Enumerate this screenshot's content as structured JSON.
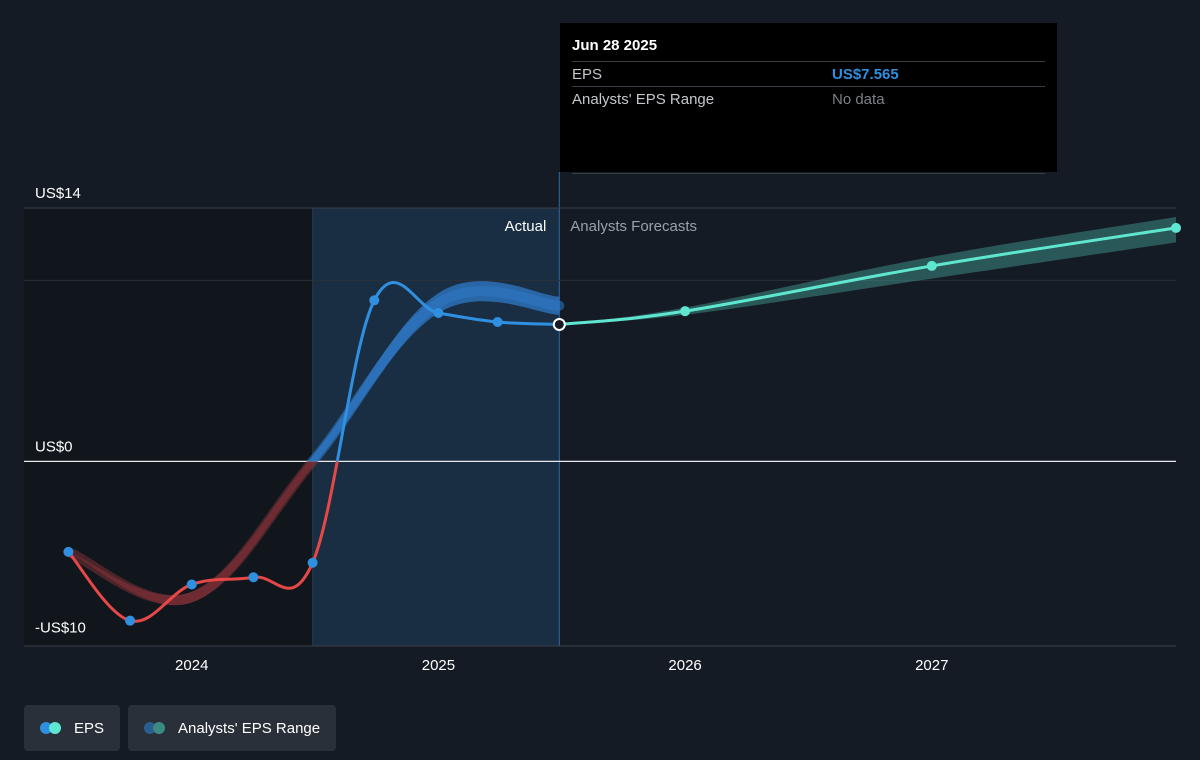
{
  "chart_data": {
    "type": "line",
    "y_tick_labels": [
      {
        "label": "US$14",
        "value": 14
      },
      {
        "label": "US$0",
        "value": 0
      },
      {
        "label": "-US$10",
        "value": -10
      }
    ],
    "x_ticks": [
      {
        "label": "2024",
        "value": 2024.0
      },
      {
        "label": "2025",
        "value": 2025.0
      },
      {
        "label": "2026",
        "value": 2026.0
      },
      {
        "label": "2027",
        "value": 2027.0
      }
    ],
    "ylim": [
      -10.2,
      14
    ],
    "xlim": [
      2023.32,
      2027.99
    ],
    "region_labels": {
      "actual": "Actual",
      "forecast": "Analysts Forecasts"
    },
    "divider_x": 2025.49,
    "shaded_start_x": 2024.49,
    "series": [
      {
        "name": "EPS",
        "kind": "actual",
        "points": [
          {
            "x": 2023.5,
            "y": -5.0
          },
          {
            "x": 2023.75,
            "y": -8.8
          },
          {
            "x": 2024.0,
            "y": -6.8
          },
          {
            "x": 2024.25,
            "y": -6.4
          },
          {
            "x": 2024.49,
            "y": -5.6
          },
          {
            "x": 2024.74,
            "y": 8.9
          },
          {
            "x": 2025.0,
            "y": 8.2
          },
          {
            "x": 2025.24,
            "y": 7.7
          },
          {
            "x": 2025.49,
            "y": 7.565
          }
        ]
      },
      {
        "name": "EPS",
        "kind": "forecast",
        "points": [
          {
            "x": 2025.49,
            "y": 7.565
          },
          {
            "x": 2026.0,
            "y": 8.3
          },
          {
            "x": 2027.0,
            "y": 10.8
          },
          {
            "x": 2027.99,
            "y": 12.9
          }
        ]
      },
      {
        "name": "Analysts' EPS Range",
        "kind": "band_history",
        "points": [
          {
            "x": 2023.5,
            "y": -5.0,
            "lo": -5.0,
            "hi": -5.0
          },
          {
            "x": 2024.0,
            "y": -7.5,
            "lo": -7.8,
            "hi": -7.2
          },
          {
            "x": 2024.49,
            "y": 0.0,
            "lo": -0.3,
            "hi": 0.3
          },
          {
            "x": 2025.0,
            "y": 8.7,
            "lo": 8.2,
            "hi": 9.3
          },
          {
            "x": 2025.49,
            "y": 8.6,
            "lo": 8.1,
            "hi": 9.1
          }
        ]
      },
      {
        "name": "Analysts' EPS Range",
        "kind": "band_forecast",
        "points": [
          {
            "x": 2025.49,
            "lo": 7.565,
            "hi": 7.565
          },
          {
            "x": 2026.0,
            "lo": 8.1,
            "hi": 8.5
          },
          {
            "x": 2027.0,
            "lo": 10.1,
            "hi": 11.3
          },
          {
            "x": 2027.99,
            "lo": 12.1,
            "hi": 13.5
          }
        ]
      }
    ]
  },
  "tooltip": {
    "date": "Jun 28 2025",
    "eps_label": "EPS",
    "eps_value": "US$7.565",
    "range_label": "Analysts' EPS Range",
    "range_value": "No data"
  },
  "legend": {
    "eps_label": "EPS",
    "range_label": "Analysts' EPS Range"
  },
  "colors": {
    "background": "#151b24",
    "actual_negative": "#e64848",
    "actual_positive": "#2f8fe0",
    "forecast": "#5fe6d0",
    "band_history": "#2e79c8",
    "band_history_negative": "#7a2f35",
    "band_forecast": "#3d8a85",
    "shaded_region": "#1b3650",
    "dark_region": "#11161d",
    "legend_eps_dot1": "#2f8fe0",
    "legend_eps_dot2": "#5fe6d0",
    "legend_range_dot1": "#2a5e8f",
    "legend_range_dot2": "#3d8a85"
  }
}
